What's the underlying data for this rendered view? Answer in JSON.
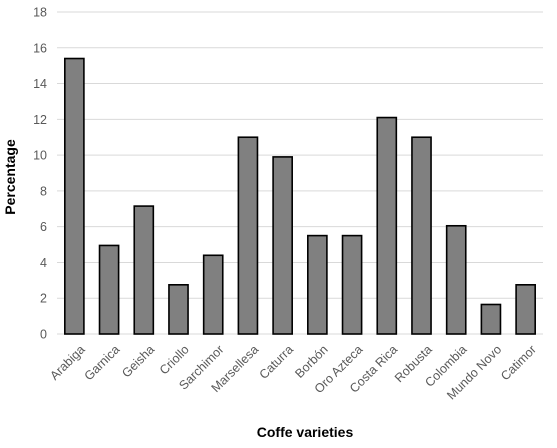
{
  "chart_data": {
    "type": "bar",
    "title": "",
    "xlabel": "Coffe varieties",
    "ylabel": "Percentage",
    "categories": [
      "Arabiga",
      "Garnica",
      "Geisha",
      "Criollo",
      "Sarchimor",
      "Marsellesa",
      "Caturra",
      "Borbón",
      "Oro Azteca",
      "Costa Rica",
      "Robusta",
      "Colombia",
      "Mundo Novo",
      "Catimor"
    ],
    "values": [
      15.4,
      4.95,
      7.15,
      2.75,
      4.4,
      11.0,
      9.9,
      5.5,
      5.5,
      12.1,
      11.0,
      6.05,
      1.65,
      2.75
    ],
    "ylim": [
      0,
      18
    ],
    "yticks": [
      0,
      2,
      4,
      6,
      8,
      10,
      12,
      14,
      16,
      18
    ],
    "grid": true,
    "legend": "none",
    "bar_color": "#808080",
    "bar_edge_color": "#000000",
    "grid_color": "#d9d9d9"
  }
}
